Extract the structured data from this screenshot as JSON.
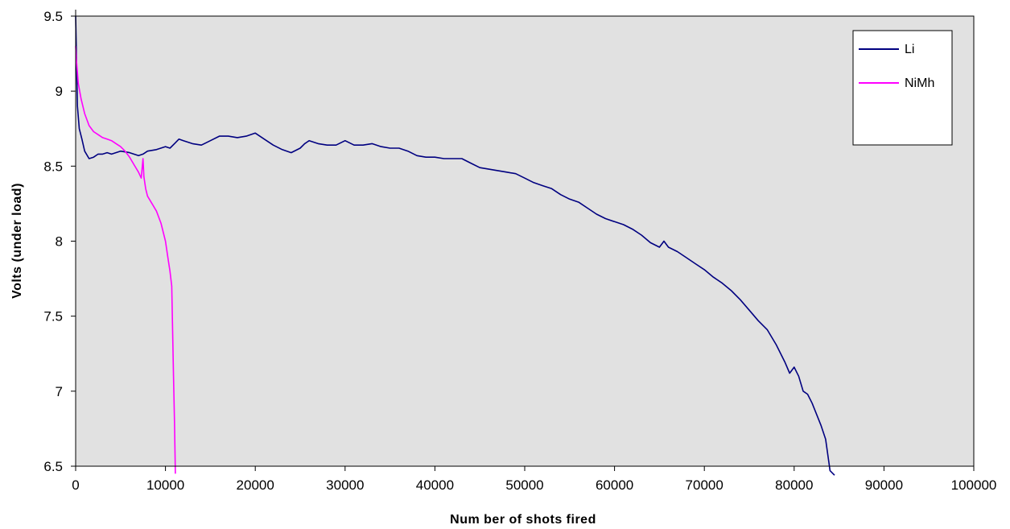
{
  "chart_data": {
    "type": "line",
    "title": "",
    "xlabel": "Num ber of shots fired",
    "ylabel": "Volts (under load)",
    "xlim": [
      0,
      100000
    ],
    "ylim": [
      6.5,
      9.5
    ],
    "x_ticks": [
      "0",
      "10000",
      "20000",
      "30000",
      "40000",
      "50000",
      "60000",
      "70000",
      "80000",
      "90000",
      "100000"
    ],
    "y_ticks": [
      "9.5",
      "9",
      "8.5",
      "8",
      "7.5",
      "7",
      "6.5"
    ],
    "grid": false,
    "background": "#e1e1e1",
    "legend_position": "top-right",
    "series": [
      {
        "name": "Li",
        "color": "#000080",
        "x": [
          0,
          200,
          400,
          700,
          1000,
          1500,
          2000,
          2500,
          3000,
          3500,
          4000,
          5000,
          6000,
          7000,
          7500,
          8000,
          9000,
          10000,
          10500,
          11000,
          11500,
          12000,
          13000,
          14000,
          15000,
          16000,
          17000,
          18000,
          19000,
          20000,
          21000,
          22000,
          23000,
          24000,
          25000,
          25500,
          26000,
          27000,
          28000,
          29000,
          30000,
          31000,
          32000,
          33000,
          34000,
          35000,
          36000,
          37000,
          38000,
          39000,
          40000,
          41000,
          42000,
          43000,
          44000,
          45000,
          46000,
          47000,
          48000,
          49000,
          50000,
          51000,
          52000,
          53000,
          54000,
          55000,
          56000,
          57000,
          58000,
          59000,
          60000,
          61000,
          62000,
          63000,
          64000,
          65000,
          65500,
          66000,
          67000,
          68000,
          69000,
          70000,
          71000,
          72000,
          73000,
          74000,
          75000,
          76000,
          77000,
          78000,
          79000,
          79500,
          80000,
          80500,
          81000,
          81500,
          82000,
          83000,
          83500,
          84000,
          84500
        ],
        "y": [
          9.5,
          8.9,
          8.75,
          8.68,
          8.6,
          8.55,
          8.56,
          8.58,
          8.58,
          8.59,
          8.58,
          8.6,
          8.59,
          8.57,
          8.58,
          8.6,
          8.61,
          8.63,
          8.62,
          8.65,
          8.68,
          8.67,
          8.65,
          8.64,
          8.67,
          8.7,
          8.7,
          8.69,
          8.7,
          8.72,
          8.68,
          8.64,
          8.61,
          8.59,
          8.62,
          8.65,
          8.67,
          8.65,
          8.64,
          8.64,
          8.67,
          8.64,
          8.64,
          8.65,
          8.63,
          8.62,
          8.62,
          8.6,
          8.57,
          8.56,
          8.56,
          8.55,
          8.55,
          8.55,
          8.52,
          8.49,
          8.48,
          8.47,
          8.46,
          8.45,
          8.42,
          8.39,
          8.37,
          8.35,
          8.31,
          8.28,
          8.26,
          8.22,
          8.18,
          8.15,
          8.13,
          8.11,
          8.08,
          8.04,
          7.99,
          7.96,
          8.0,
          7.96,
          7.93,
          7.89,
          7.85,
          7.81,
          7.76,
          7.72,
          7.67,
          7.61,
          7.54,
          7.47,
          7.41,
          7.31,
          7.19,
          7.12,
          7.16,
          7.1,
          7.0,
          6.98,
          6.92,
          6.77,
          6.68,
          6.47,
          6.44
        ]
      },
      {
        "name": "NiMh",
        "color": "#ff00ff",
        "x": [
          0,
          100,
          300,
          600,
          1000,
          1500,
          2000,
          2500,
          3000,
          3500,
          4000,
          4500,
          5000,
          5500,
          6000,
          6500,
          7000,
          7300,
          7500,
          7600,
          7800,
          8000,
          8500,
          9000,
          9500,
          10000,
          10300,
          10500,
          10700,
          10800,
          10900,
          11000,
          11100
        ],
        "y": [
          9.3,
          9.2,
          9.05,
          8.95,
          8.85,
          8.77,
          8.73,
          8.71,
          8.69,
          8.68,
          8.67,
          8.65,
          8.63,
          8.6,
          8.56,
          8.51,
          8.46,
          8.42,
          8.55,
          8.43,
          8.35,
          8.3,
          8.25,
          8.2,
          8.12,
          8.0,
          7.88,
          7.8,
          7.7,
          7.4,
          7.1,
          6.8,
          6.45
        ]
      }
    ]
  }
}
